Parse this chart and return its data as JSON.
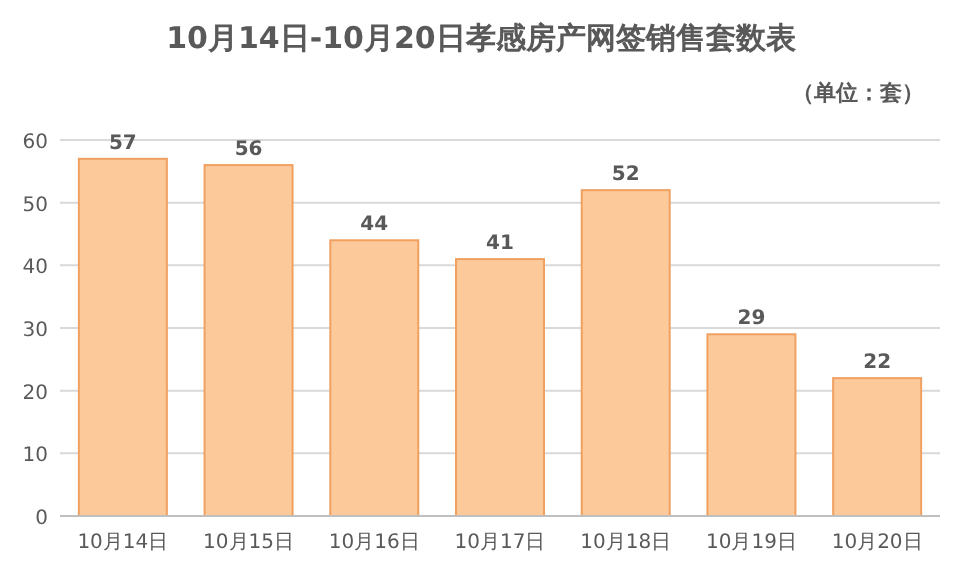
{
  "chart_data": {
    "type": "bar",
    "title": "10月14日-10月20日孝感房产网签销售套数表",
    "subtitle": "（单位：套）",
    "categories": [
      "10月14日",
      "10月15日",
      "10月16日",
      "10月17日",
      "10月18日",
      "10月19日",
      "10月20日"
    ],
    "values": [
      57,
      56,
      44,
      41,
      52,
      29,
      22
    ],
    "color": "#fbc99a",
    "ylim": [
      0,
      60
    ],
    "yticks": [
      0,
      10,
      20,
      30,
      40,
      50,
      60
    ],
    "grid": "y",
    "data_labels": true
  }
}
